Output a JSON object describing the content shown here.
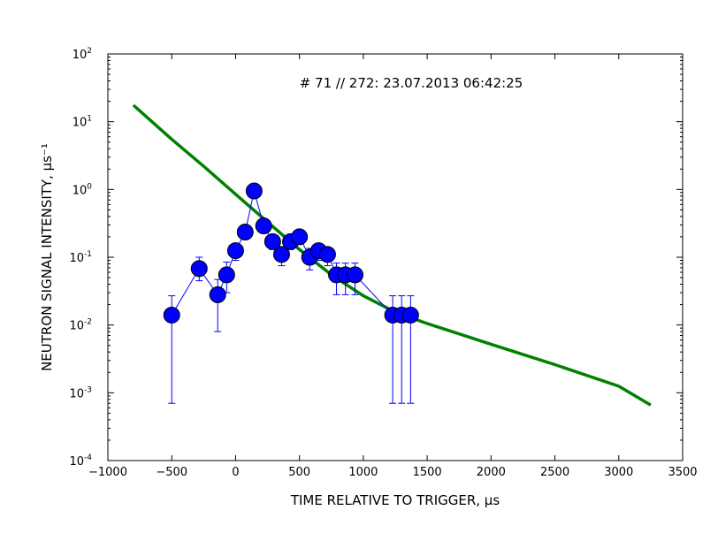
{
  "chart_data": {
    "type": "scatter",
    "title": "# 71 // 272: 23.07.2013 06:42:25",
    "xlabel": "TIME RELATIVE TO TRIGGER, μs",
    "ylabel": "NEUTRON SIGNAL INTENSITY, μs⁻¹",
    "xlim": [
      -1000,
      3500
    ],
    "ylim": [
      0.0001,
      100
    ],
    "yscale": "log",
    "grid": false,
    "x_ticks": [
      -1000,
      -500,
      0,
      500,
      1000,
      1500,
      2000,
      2500,
      3000,
      3500
    ],
    "x_tick_labels": [
      "−1000",
      "−500",
      "0",
      "500",
      "1000",
      "1500",
      "2000",
      "2500",
      "3000",
      "3500"
    ],
    "y_ticks": [
      {
        "value": 0.0001,
        "base": "10",
        "exp": "-4"
      },
      {
        "value": 0.001,
        "base": "10",
        "exp": "-3"
      },
      {
        "value": 0.01,
        "base": "10",
        "exp": "-2"
      },
      {
        "value": 0.1,
        "base": "10",
        "exp": "-1"
      },
      {
        "value": 1,
        "base": "10",
        "exp": "0"
      },
      {
        "value": 10,
        "base": "10",
        "exp": "1"
      },
      {
        "value": 100,
        "base": "10",
        "exp": "2"
      }
    ],
    "series": [
      {
        "kind": "points-with-errorbars",
        "color": "#0000ff",
        "points": [
          {
            "x": -500,
            "y": 0.014,
            "ylo": 0.0007,
            "yhi": 0.027
          },
          {
            "x": -285,
            "y": 0.068,
            "ylo": 0.045,
            "yhi": 0.1
          },
          {
            "x": -140,
            "y": 0.028,
            "ylo": 0.008,
            "yhi": 0.047
          },
          {
            "x": -70,
            "y": 0.055,
            "ylo": 0.03,
            "yhi": 0.085
          },
          {
            "x": 0,
            "y": 0.125,
            "ylo": 0.09,
            "yhi": 0.16
          },
          {
            "x": 75,
            "y": 0.235,
            "ylo": 0.19,
            "yhi": 0.28
          },
          {
            "x": 145,
            "y": 0.95,
            "ylo": 0.85,
            "yhi": 1.05
          },
          {
            "x": 220,
            "y": 0.29,
            "ylo": 0.24,
            "yhi": 0.34
          },
          {
            "x": 290,
            "y": 0.17,
            "ylo": 0.13,
            "yhi": 0.21
          },
          {
            "x": 360,
            "y": 0.11,
            "ylo": 0.075,
            "yhi": 0.14
          },
          {
            "x": 430,
            "y": 0.17,
            "ylo": 0.13,
            "yhi": 0.21
          },
          {
            "x": 500,
            "y": 0.2,
            "ylo": 0.16,
            "yhi": 0.24
          },
          {
            "x": 580,
            "y": 0.1,
            "ylo": 0.065,
            "yhi": 0.135
          },
          {
            "x": 650,
            "y": 0.125,
            "ylo": 0.09,
            "yhi": 0.16
          },
          {
            "x": 720,
            "y": 0.11,
            "ylo": 0.075,
            "yhi": 0.14
          },
          {
            "x": 790,
            "y": 0.055,
            "ylo": 0.028,
            "yhi": 0.082
          },
          {
            "x": 860,
            "y": 0.055,
            "ylo": 0.028,
            "yhi": 0.082
          },
          {
            "x": 935,
            "y": 0.055,
            "ylo": 0.028,
            "yhi": 0.082
          },
          {
            "x": 1230,
            "y": 0.014,
            "ylo": 0.0007,
            "yhi": 0.027
          },
          {
            "x": 1300,
            "y": 0.014,
            "ylo": 0.0007,
            "yhi": 0.027
          },
          {
            "x": 1370,
            "y": 0.014,
            "ylo": 0.0007,
            "yhi": 0.027
          }
        ]
      },
      {
        "kind": "fit-line",
        "color": "#008000",
        "x": [
          -800,
          -500,
          -250,
          0,
          250,
          500,
          750,
          1000,
          1250,
          1500,
          2000,
          2500,
          3000,
          3250
        ],
        "y": [
          17.5,
          5.5,
          2.2,
          0.85,
          0.33,
          0.13,
          0.055,
          0.027,
          0.0155,
          0.0105,
          0.0052,
          0.0026,
          0.00125,
          0.00066
        ]
      }
    ]
  }
}
